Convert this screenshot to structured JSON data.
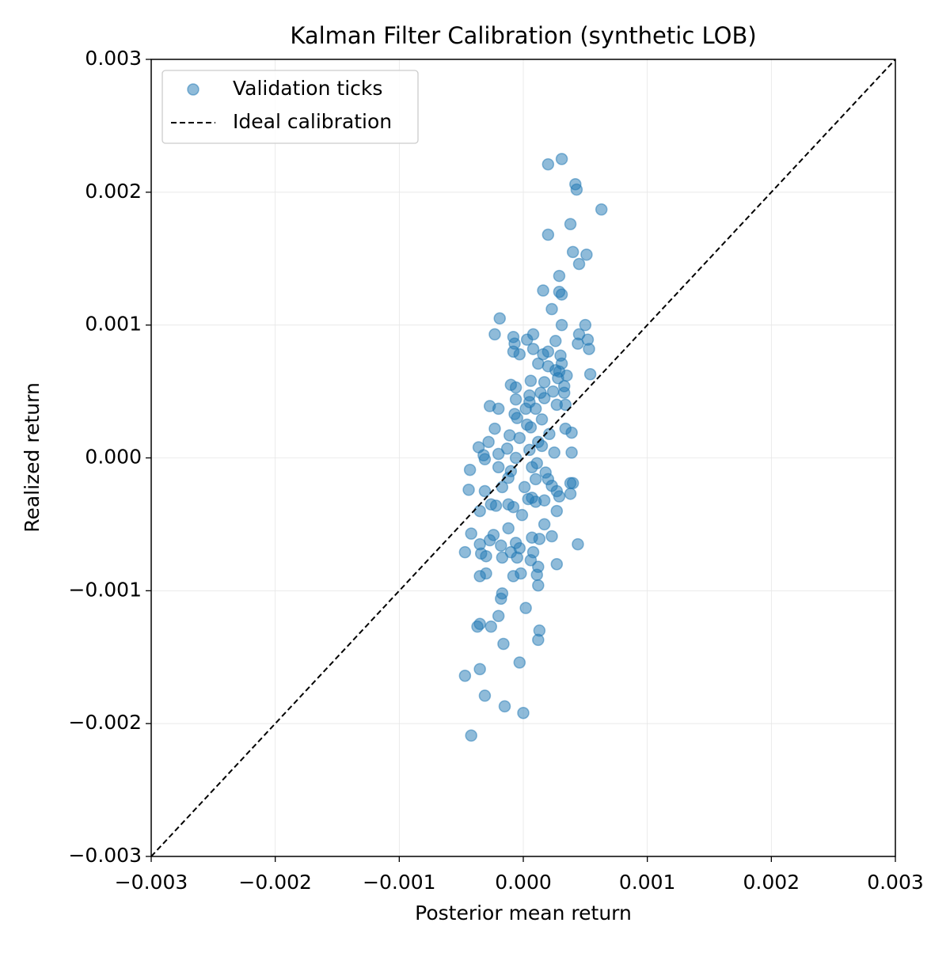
{
  "chart_data": {
    "type": "scatter",
    "title": "Kalman Filter Calibration (synthetic LOB)",
    "xlabel": "Posterior mean return",
    "ylabel": "Realized return",
    "xlim": [
      -0.003,
      0.003
    ],
    "ylim": [
      -0.003,
      0.003
    ],
    "xticks": [
      {
        "value": -0.003,
        "label": "−0.003"
      },
      {
        "value": -0.002,
        "label": "−0.002"
      },
      {
        "value": -0.001,
        "label": "−0.001"
      },
      {
        "value": 0,
        "label": "0.000"
      },
      {
        "value": 0.001,
        "label": "0.001"
      },
      {
        "value": 0.002,
        "label": "0.002"
      },
      {
        "value": 0.003,
        "label": "0.003"
      }
    ],
    "yticks": [
      {
        "value": -0.003,
        "label": "−0.003"
      },
      {
        "value": -0.002,
        "label": "−0.002"
      },
      {
        "value": -0.001,
        "label": "−0.001"
      },
      {
        "value": 0,
        "label": "0.000"
      },
      {
        "value": 0.001,
        "label": "0.001"
      },
      {
        "value": 0.002,
        "label": "0.002"
      },
      {
        "value": 0.003,
        "label": "0.003"
      }
    ],
    "grid": true,
    "legend": "upper left",
    "series": [
      {
        "name": "Validation ticks",
        "color": "#1f77b4",
        "opacity": 0.5,
        "x": [
          0.00031,
          0.0002,
          0.00042,
          0.00043,
          0.00063,
          0.00038,
          0.0002,
          0.0004,
          0.00051,
          0.00045,
          0.00029,
          0.00016,
          0.00029,
          0.00031,
          0.00023,
          -0.00019,
          0.00031,
          0.0005,
          -0.00023,
          8e-05,
          -8e-05,
          0.00045,
          0.00052,
          3e-05,
          0.00026,
          -7e-05,
          0.00044,
          0.00053,
          8e-05,
          -8e-05,
          -3e-05,
          0.00016,
          0.0002,
          0.0003,
          0.00012,
          0.0002,
          0.00031,
          0.00026,
          0.00035,
          0.00054,
          0.00029,
          0.00028,
          6e-05,
          0.00017,
          -0.0001,
          -6e-05,
          0.00033,
          0.00024,
          0.00014,
          0.00033,
          5e-05,
          0.00017,
          -6e-05,
          5e-05,
          0.00027,
          0.00034,
          -0.00027,
          -0.0002,
          2e-05,
          0.0001,
          -7e-05,
          -5e-05,
          0.00015,
          3e-05,
          6e-05,
          -0.00023,
          0.00034,
          0.00039,
          0.00021,
          -0.00011,
          -3e-05,
          -0.00028,
          0.00012,
          -0.00036,
          -0.00013,
          5e-05,
          0.00015,
          0.00025,
          0.00039,
          -0.0002,
          -0.00031,
          -0.00032,
          -6e-05,
          0.00011,
          -0.00043,
          -0.0002,
          -0.0001,
          7e-05,
          0.00018,
          -0.00012,
          0.0001,
          0.0002,
          0.00038,
          0.0004,
          -0.00044,
          -0.00017,
          1e-05,
          0.00023,
          -0.00031,
          0.00027,
          0.00038,
          0.00029,
          7e-05,
          0.00017,
          4e-05,
          0.0001,
          -0.00026,
          -0.00022,
          -0.00012,
          -8e-05,
          -0.00035,
          0.00027,
          -1e-05,
          0.00017,
          -0.00012,
          -0.00042,
          -0.00024,
          0.00023,
          7e-05,
          0.00013,
          -0.00027,
          -6e-05,
          0.00044,
          -0.00035,
          -0.00018,
          -3e-05,
          -0.00047,
          -0.00034,
          -0.0001,
          8e-05,
          -0.0003,
          -0.00017,
          -5e-05,
          6e-05,
          0.00027,
          0.00012,
          -2e-05,
          -8e-05,
          -0.0003,
          -0.00035,
          0.00011,
          0.00012,
          -0.00017,
          -0.00018,
          2e-05,
          -0.0002,
          -0.00035,
          -0.00037,
          -0.00026,
          0.00013,
          0.00012,
          -0.00016,
          -3e-05,
          -0.00035,
          -0.00047,
          -0.00031,
          -0.00015,
          0,
          -0.00042
        ],
        "values": [
          0.00225,
          0.00221,
          0.00206,
          0.00202,
          0.00187,
          0.00176,
          0.00168,
          0.00155,
          0.00153,
          0.00146,
          0.00137,
          0.00126,
          0.00125,
          0.00123,
          0.00112,
          0.00105,
          0.001,
          0.001,
          0.00093,
          0.00093,
          0.00091,
          0.00093,
          0.00089,
          0.00089,
          0.00088,
          0.00086,
          0.00086,
          0.00082,
          0.00082,
          0.0008,
          0.00078,
          0.00078,
          0.0008,
          0.00077,
          0.00071,
          0.00069,
          0.00071,
          0.00066,
          0.00062,
          0.00063,
          0.00065,
          0.0006,
          0.00058,
          0.00057,
          0.00055,
          0.00053,
          0.00054,
          0.0005,
          0.00049,
          0.00049,
          0.00047,
          0.00045,
          0.00044,
          0.00042,
          0.0004,
          0.0004,
          0.00039,
          0.00037,
          0.00037,
          0.00037,
          0.00033,
          0.0003,
          0.00029,
          0.00025,
          0.00023,
          0.00022,
          0.00022,
          0.00019,
          0.00018,
          0.00017,
          0.00015,
          0.00012,
          0.00012,
          8e-05,
          7e-05,
          6e-05,
          9e-05,
          4e-05,
          4e-05,
          3e-05,
          -1e-05,
          2e-05,
          0,
          -4e-05,
          -9e-05,
          -7e-05,
          -0.0001,
          -7e-05,
          -0.00011,
          -0.00015,
          -0.00016,
          -0.00016,
          -0.00019,
          -0.00019,
          -0.00024,
          -0.00022,
          -0.00022,
          -0.00021,
          -0.00025,
          -0.00025,
          -0.00027,
          -0.00029,
          -0.0003,
          -0.00032,
          -0.00031,
          -0.00033,
          -0.00035,
          -0.00036,
          -0.00035,
          -0.00037,
          -0.0004,
          -0.0004,
          -0.00043,
          -0.0005,
          -0.00053,
          -0.00057,
          -0.00058,
          -0.00059,
          -0.0006,
          -0.00061,
          -0.00062,
          -0.00064,
          -0.00065,
          -0.00065,
          -0.00066,
          -0.00068,
          -0.00071,
          -0.00072,
          -0.00071,
          -0.00071,
          -0.00074,
          -0.00075,
          -0.00075,
          -0.00077,
          -0.0008,
          -0.00082,
          -0.00087,
          -0.00089,
          -0.00087,
          -0.00089,
          -0.00088,
          -0.00096,
          -0.00102,
          -0.00106,
          -0.00113,
          -0.00119,
          -0.00125,
          -0.00127,
          -0.00127,
          -0.0013,
          -0.00137,
          -0.0014,
          -0.00154,
          -0.00159,
          -0.00164,
          -0.00179,
          -0.00187,
          -0.00192,
          -0.00209
        ]
      },
      {
        "name": "Ideal calibration",
        "type": "line",
        "color": "#000000",
        "dashed": true,
        "x": [
          -0.003,
          0.003
        ],
        "values": [
          -0.003,
          0.003
        ]
      }
    ]
  }
}
